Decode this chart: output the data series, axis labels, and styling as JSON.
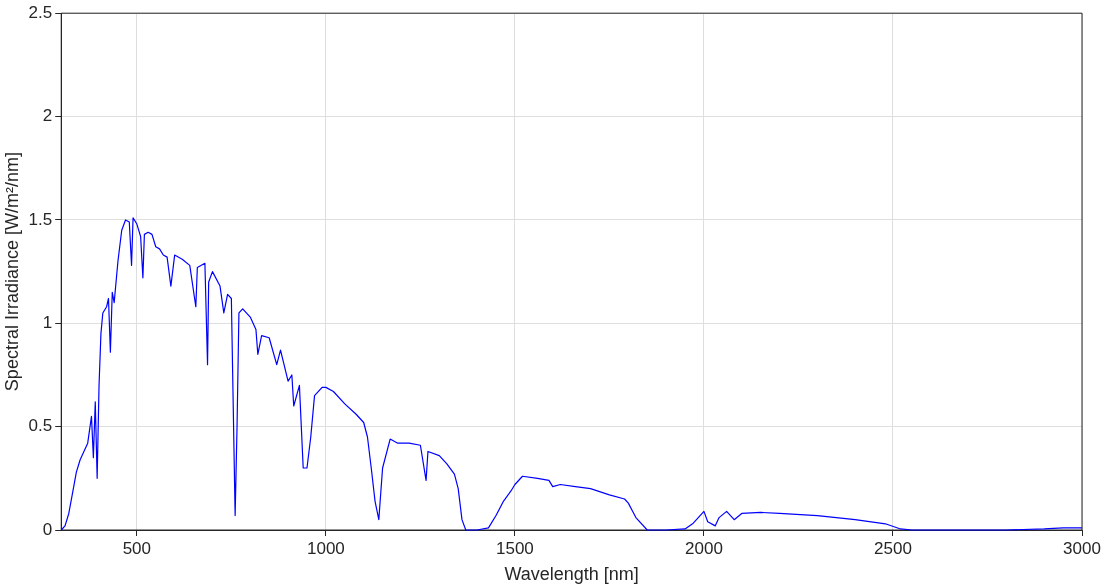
{
  "chart_data": {
    "type": "line",
    "xlabel": "Wavelength [nm]",
    "ylabel": "Spectral Irradiance [W/m²/nm]",
    "xlim": [
      300,
      3000
    ],
    "xticks": [
      500,
      1000,
      1500,
      2000,
      2500,
      3000
    ],
    "ylim": [
      0,
      2.5
    ],
    "yticks": [
      0,
      0.5,
      1,
      1.5,
      2,
      2.5
    ],
    "grid": true,
    "legend": false,
    "marker": "none",
    "line_style": "solid",
    "series": [
      {
        "color": "#0000ff",
        "x": [
          300,
          310,
          320,
          330,
          340,
          350,
          360,
          370,
          380,
          385,
          390,
          395,
          400,
          405,
          410,
          420,
          425,
          430,
          435,
          440,
          450,
          460,
          470,
          480,
          486,
          490,
          500,
          510,
          516,
          520,
          530,
          540,
          550,
          560,
          570,
          580,
          590,
          600,
          620,
          640,
          656,
          660,
          680,
          687,
          690,
          700,
          720,
          730,
          740,
          750,
          760,
          765,
          770,
          780,
          800,
          815,
          820,
          830,
          850,
          870,
          880,
          900,
          910,
          915,
          930,
          940,
          950,
          960,
          970,
          990,
          1000,
          1020,
          1050,
          1080,
          1100,
          1110,
          1120,
          1130,
          1140,
          1150,
          1170,
          1190,
          1220,
          1250,
          1265,
          1270,
          1300,
          1320,
          1340,
          1350,
          1360,
          1370,
          1400,
          1430,
          1450,
          1470,
          1490,
          1500,
          1520,
          1560,
          1590,
          1600,
          1620,
          1660,
          1700,
          1750,
          1790,
          1800,
          1820,
          1850,
          1900,
          1950,
          1970,
          2000,
          2010,
          2030,
          2040,
          2060,
          2080,
          2100,
          2150,
          2200,
          2300,
          2400,
          2480,
          2520,
          2550,
          2800,
          2900,
          2950,
          3000
        ],
        "values": [
          0,
          0.02,
          0.08,
          0.18,
          0.28,
          0.34,
          0.38,
          0.42,
          0.55,
          0.35,
          0.62,
          0.25,
          0.7,
          0.95,
          1.05,
          1.08,
          1.12,
          0.86,
          1.15,
          1.1,
          1.3,
          1.45,
          1.5,
          1.49,
          1.28,
          1.51,
          1.48,
          1.42,
          1.22,
          1.43,
          1.44,
          1.43,
          1.37,
          1.36,
          1.33,
          1.32,
          1.18,
          1.33,
          1.31,
          1.28,
          1.08,
          1.27,
          1.29,
          0.8,
          1.2,
          1.25,
          1.18,
          1.05,
          1.14,
          1.12,
          0.07,
          0.5,
          1.05,
          1.07,
          1.03,
          0.97,
          0.85,
          0.94,
          0.93,
          0.8,
          0.87,
          0.72,
          0.75,
          0.6,
          0.7,
          0.3,
          0.3,
          0.45,
          0.65,
          0.69,
          0.69,
          0.67,
          0.61,
          0.56,
          0.52,
          0.45,
          0.3,
          0.14,
          0.05,
          0.3,
          0.44,
          0.42,
          0.42,
          0.41,
          0.24,
          0.38,
          0.36,
          0.32,
          0.27,
          0.2,
          0.05,
          0,
          0,
          0.01,
          0.07,
          0.14,
          0.19,
          0.22,
          0.26,
          0.25,
          0.24,
          0.21,
          0.22,
          0.21,
          0.2,
          0.17,
          0.15,
          0.13,
          0.06,
          0,
          0,
          0.005,
          0.03,
          0.09,
          0.04,
          0.02,
          0.06,
          0.09,
          0.05,
          0.08,
          0.085,
          0.08,
          0.07,
          0.05,
          0.03,
          0.005,
          0,
          0,
          0.005,
          0.01,
          0.01
        ]
      }
    ]
  }
}
